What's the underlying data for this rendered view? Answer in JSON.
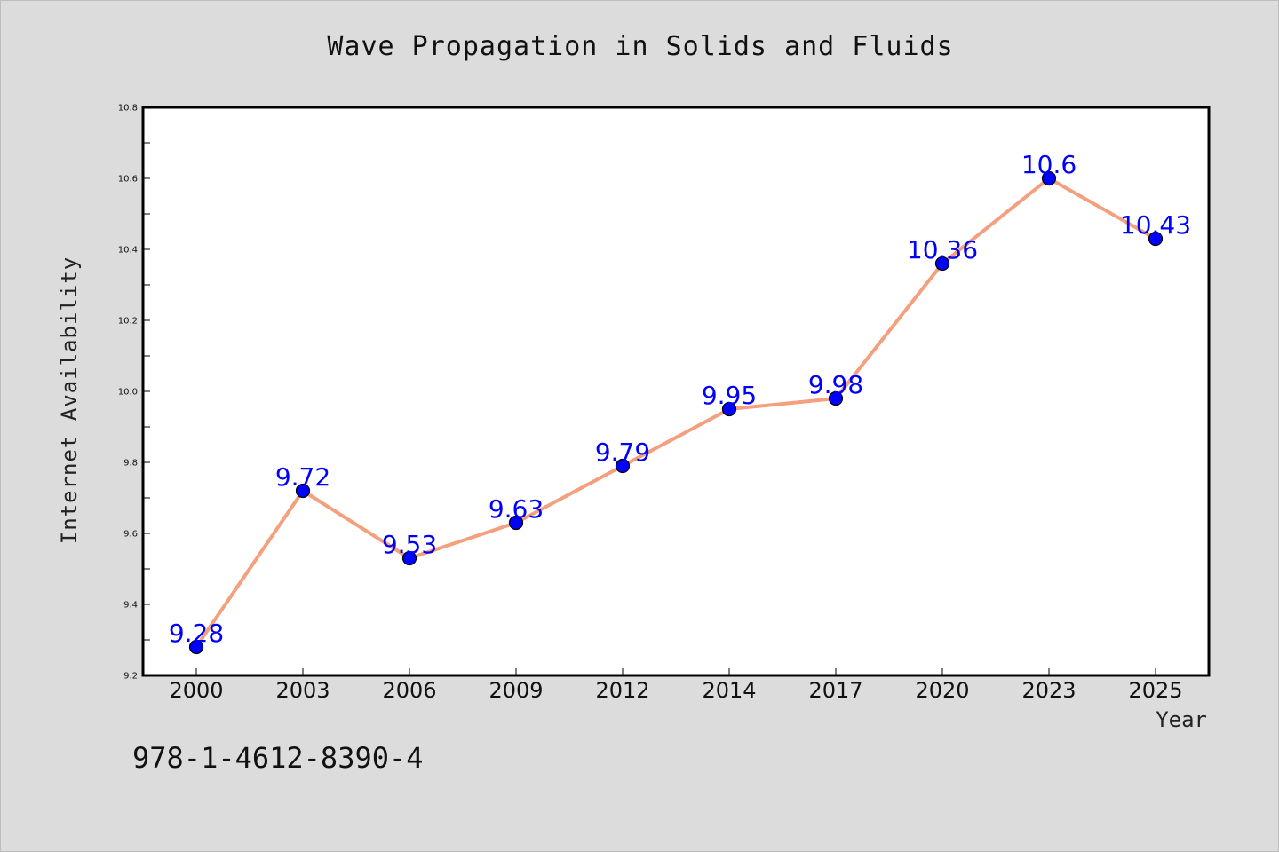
{
  "chart_data": {
    "type": "line",
    "title": "Wave Propagation in Solids and Fluids",
    "xlabel": "Year",
    "ylabel": "Internet Availability",
    "categories": [
      "2000",
      "2003",
      "2006",
      "2009",
      "2012",
      "2014",
      "2017",
      "2020",
      "2023",
      "2025"
    ],
    "values": [
      9.28,
      9.72,
      9.53,
      9.63,
      9.79,
      9.95,
      9.98,
      10.36,
      10.6,
      10.43
    ],
    "point_labels": [
      "9.28",
      "9.72",
      "9.53",
      "9.63",
      "9.79",
      "9.95",
      "9.98",
      "10.36",
      "10.6",
      "10.43"
    ],
    "ylim": [
      9.2,
      10.8
    ],
    "yticks": [
      "9.2",
      "9.4",
      "9.6",
      "9.8",
      "10.0",
      "10.2",
      "10.4",
      "10.6",
      "10.8"
    ],
    "grid": false,
    "legend": "none",
    "colors": {
      "line": "#f4a07e",
      "marker": "#0000ff",
      "label": "#0000ff",
      "background": "#dcdcdc",
      "plot_background": "#ffffff"
    }
  },
  "footer": {
    "isbn": "978-1-4612-8390-4"
  }
}
